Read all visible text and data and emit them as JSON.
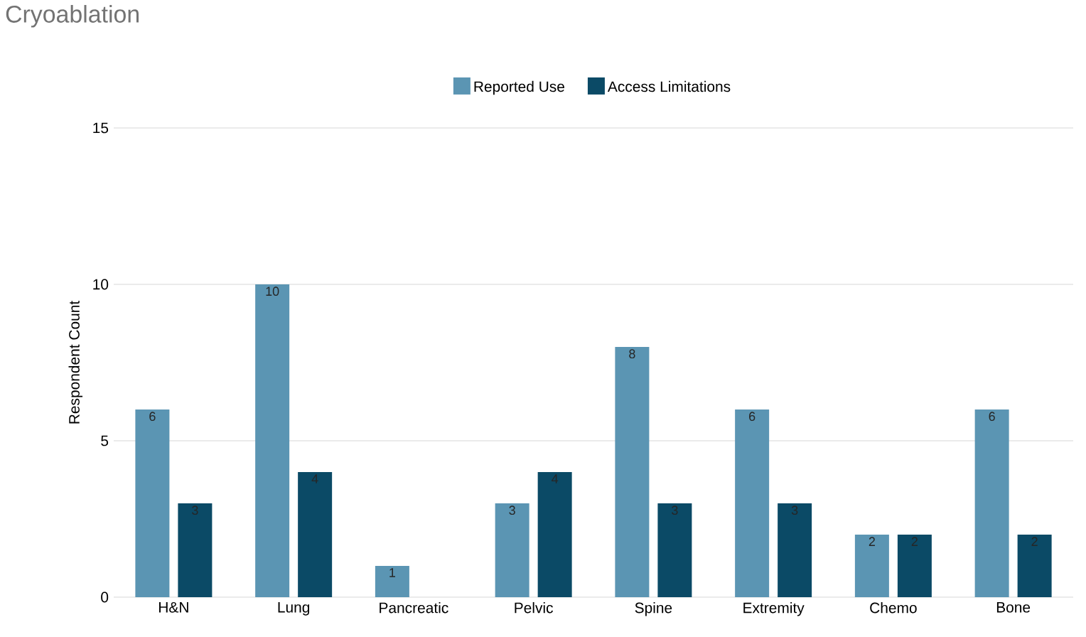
{
  "chart_data": {
    "type": "bar",
    "title": "Cryoablation",
    "ylabel": "Respondent Count",
    "categories": [
      "H&N",
      "Lung",
      "Pancreatic",
      "Pelvic",
      "Spine",
      "Extremity",
      "Chemo",
      "Bone"
    ],
    "series": [
      {
        "name": "Reported Use",
        "color": "#5b95b3",
        "values": [
          6,
          10,
          1,
          3,
          8,
          6,
          2,
          6
        ],
        "value_labels": [
          "6",
          "10",
          "1",
          "3",
          "8",
          "6",
          "2",
          "6"
        ]
      },
      {
        "name": "Access Limitations",
        "color": "#0b4a66",
        "values": [
          3,
          4,
          0,
          4,
          3,
          3,
          2,
          2
        ],
        "value_labels": [
          "3",
          "4",
          null,
          "4",
          "3",
          "3",
          "2",
          "2"
        ]
      }
    ],
    "ylim": [
      0,
      15
    ],
    "yticks": [
      0,
      5,
      10,
      15
    ],
    "grid": "y",
    "legend": "top"
  }
}
